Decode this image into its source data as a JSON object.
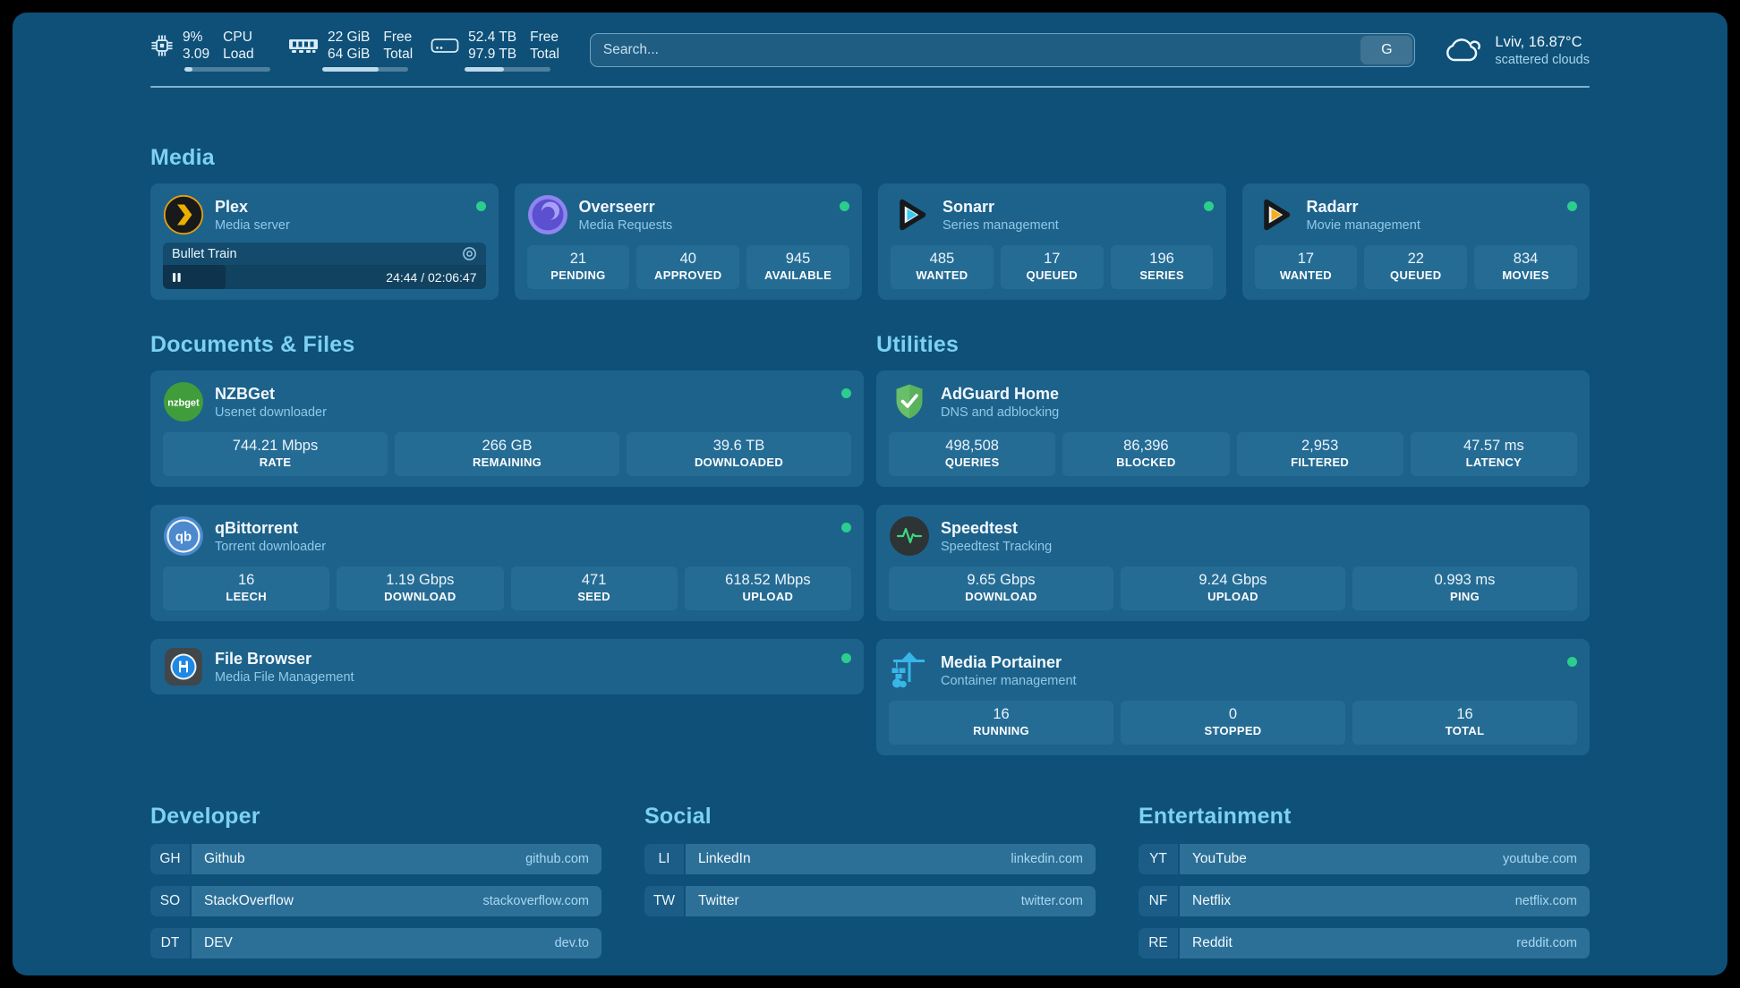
{
  "theme": {
    "background": "#0E5078",
    "card_background": "#1D628B",
    "stat_tile_background": "#256C95",
    "accent_title": "#7DD1F1",
    "status_online": "#2BCE8C"
  },
  "topbar": {
    "resources": [
      {
        "icon": "cpu-icon",
        "values": [
          "9%",
          "3.09"
        ],
        "labels": [
          "CPU",
          "Load"
        ],
        "percent": 9
      },
      {
        "icon": "memory-icon",
        "values": [
          "22 GiB",
          "64 GiB"
        ],
        "labels": [
          "Free",
          "Total"
        ],
        "percent": 66
      },
      {
        "icon": "disk-icon",
        "values": [
          "52.4 TB",
          "97.9 TB"
        ],
        "labels": [
          "Free",
          "Total"
        ],
        "percent": 46
      }
    ],
    "search": {
      "placeholder": "Search...",
      "provider": "G"
    },
    "weather": {
      "location": "Lviv, 16.87°C",
      "condition": "scattered clouds"
    }
  },
  "groups": [
    {
      "title": "Media",
      "services": [
        {
          "name": "Plex",
          "description": "Media server",
          "online": true,
          "media": {
            "title": "Bullet Train",
            "time_display": "24:44 / 02:06:47",
            "progress_percent": 19.5
          }
        },
        {
          "name": "Overseerr",
          "description": "Media Requests",
          "online": true,
          "stats": [
            {
              "value": "21",
              "label": "PENDING"
            },
            {
              "value": "40",
              "label": "APPROVED"
            },
            {
              "value": "945",
              "label": "AVAILABLE"
            }
          ]
        },
        {
          "name": "Sonarr",
          "description": "Series management",
          "online": true,
          "stats": [
            {
              "value": "485",
              "label": "WANTED"
            },
            {
              "value": "17",
              "label": "QUEUED"
            },
            {
              "value": "196",
              "label": "SERIES"
            }
          ]
        },
        {
          "name": "Radarr",
          "description": "Movie management",
          "online": true,
          "stats": [
            {
              "value": "17",
              "label": "WANTED"
            },
            {
              "value": "22",
              "label": "QUEUED"
            },
            {
              "value": "834",
              "label": "MOVIES"
            }
          ]
        }
      ]
    },
    {
      "title": "Documents & Files",
      "services": [
        {
          "name": "NZBGet",
          "description": "Usenet downloader",
          "online": true,
          "icon_text": "nzbget",
          "stats": [
            {
              "value": "744.21 Mbps",
              "label": "RATE"
            },
            {
              "value": "266 GB",
              "label": "REMAINING"
            },
            {
              "value": "39.6 TB",
              "label": "DOWNLOADED"
            }
          ]
        },
        {
          "name": "qBittorrent",
          "description": "Torrent downloader",
          "online": true,
          "icon_text": "qb",
          "stats": [
            {
              "value": "16",
              "label": "LEECH"
            },
            {
              "value": "1.19 Gbps",
              "label": "DOWNLOAD"
            },
            {
              "value": "471",
              "label": "SEED"
            },
            {
              "value": "618.52 Mbps",
              "label": "UPLOAD"
            }
          ]
        },
        {
          "name": "File Browser",
          "description": "Media File Management",
          "online": true
        }
      ]
    },
    {
      "title": "Utilities",
      "services": [
        {
          "name": "AdGuard Home",
          "description": "DNS and adblocking",
          "online": false,
          "stats": [
            {
              "value": "498,508",
              "label": "QUERIES"
            },
            {
              "value": "86,396",
              "label": "BLOCKED"
            },
            {
              "value": "2,953",
              "label": "FILTERED"
            },
            {
              "value": "47.57 ms",
              "label": "LATENCY"
            }
          ]
        },
        {
          "name": "Speedtest",
          "description": "Speedtest Tracking",
          "online": false,
          "stats": [
            {
              "value": "9.65 Gbps",
              "label": "DOWNLOAD"
            },
            {
              "value": "9.24 Gbps",
              "label": "UPLOAD"
            },
            {
              "value": "0.993 ms",
              "label": "PING"
            }
          ]
        },
        {
          "name": "Media Portainer",
          "description": "Container management",
          "online": true,
          "stats": [
            {
              "value": "16",
              "label": "RUNNING"
            },
            {
              "value": "0",
              "label": "STOPPED"
            },
            {
              "value": "16",
              "label": "TOTAL"
            }
          ]
        }
      ]
    }
  ],
  "bookmarks": [
    {
      "title": "Developer",
      "items": [
        {
          "abbr": "GH",
          "name": "Github",
          "url": "github.com"
        },
        {
          "abbr": "SO",
          "name": "StackOverflow",
          "url": "stackoverflow.com"
        },
        {
          "abbr": "DT",
          "name": "DEV",
          "url": "dev.to"
        }
      ]
    },
    {
      "title": "Social",
      "items": [
        {
          "abbr": "LI",
          "name": "LinkedIn",
          "url": "linkedin.com"
        },
        {
          "abbr": "TW",
          "name": "Twitter",
          "url": "twitter.com"
        }
      ]
    },
    {
      "title": "Entertainment",
      "items": [
        {
          "abbr": "YT",
          "name": "YouTube",
          "url": "youtube.com"
        },
        {
          "abbr": "NF",
          "name": "Netflix",
          "url": "netflix.com"
        },
        {
          "abbr": "RE",
          "name": "Reddit",
          "url": "reddit.com"
        }
      ]
    }
  ]
}
